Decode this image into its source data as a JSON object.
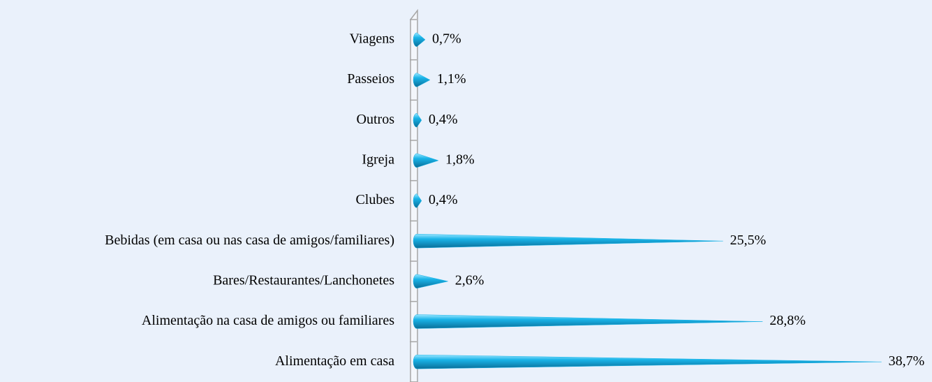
{
  "chart_data": {
    "type": "bar",
    "orientation": "horizontal",
    "categories": [
      "Viagens",
      "Passeios",
      "Outros",
      "Igreja",
      "Clubes",
      "Bebidas (em casa ou nas casa de amigos/familiares)",
      "Bares/Restaurantes/Lanchonetes",
      "Alimentação na casa de amigos ou familiares",
      "Alimentação em casa"
    ],
    "values": [
      0.7,
      1.1,
      0.4,
      1.8,
      0.4,
      25.5,
      2.6,
      28.8,
      38.7
    ],
    "value_labels": [
      "0,7%",
      "1,1%",
      "0,4%",
      "1,8%",
      "0,4%",
      "25,5%",
      "2,6%",
      "28,8%",
      "38,7%"
    ],
    "color": "#1ab4e8",
    "xlim": [
      0,
      40
    ]
  }
}
